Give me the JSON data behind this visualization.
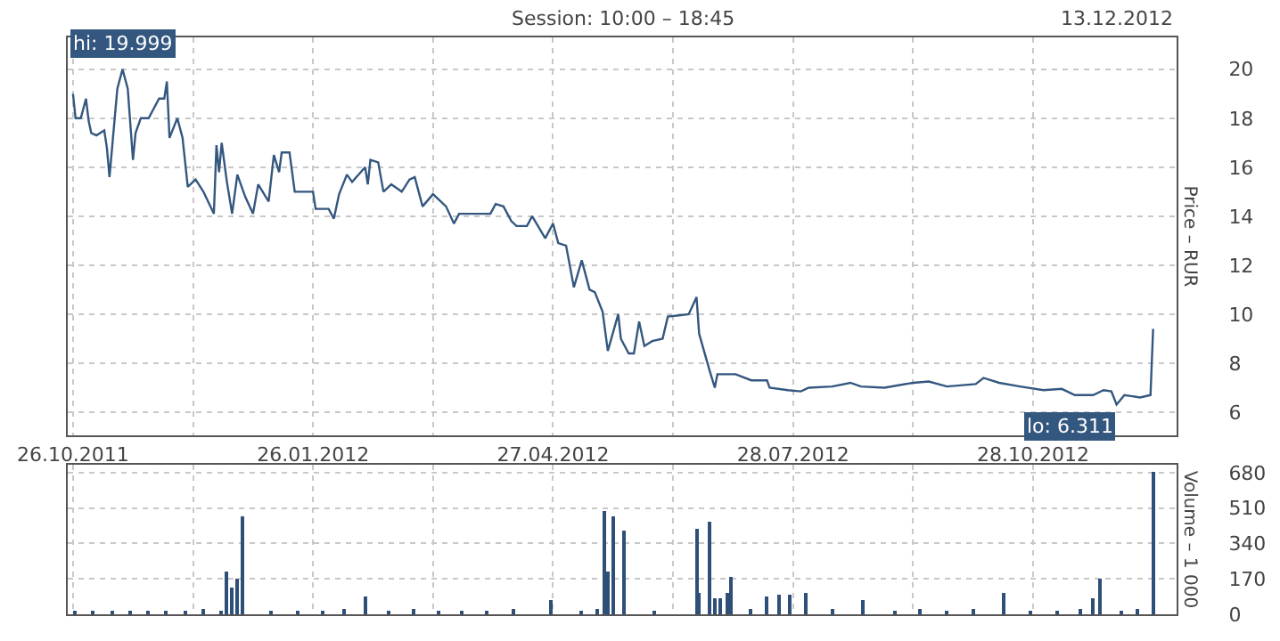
{
  "chart_data": [
    {
      "type": "line",
      "title": "Session: 10:00 – 18:45",
      "ylabel": "Price – RUR",
      "annotations": [
        "13.12.2012",
        {
          "text": "hi: 19.999",
          "x": "2011-11-14",
          "y": 19.999
        },
        {
          "text": "lo: 6.311",
          "x": "2012-11-29",
          "y": 6.311
        }
      ],
      "x": [
        "2011-10-26",
        "2011-10-27",
        "2011-10-29",
        "2011-10-31",
        "2011-11-01",
        "2011-11-02",
        "2011-11-04",
        "2011-11-07",
        "2011-11-08",
        "2011-11-09",
        "2011-11-11",
        "2011-11-12",
        "2011-11-14",
        "2011-11-16",
        "2011-11-18",
        "2011-11-19",
        "2011-11-21",
        "2011-11-24",
        "2011-11-28",
        "2011-11-30",
        "2011-12-01",
        "2011-12-02",
        "2011-12-05",
        "2011-12-07",
        "2011-12-09",
        "2011-12-12",
        "2011-12-15",
        "2011-12-19",
        "2011-12-20",
        "2011-12-21",
        "2011-12-22",
        "2011-12-24",
        "2011-12-26",
        "2011-12-28",
        "2011-12-31",
        "2012-01-03",
        "2012-01-05",
        "2012-01-09",
        "2012-01-11",
        "2012-01-13",
        "2012-01-14",
        "2012-01-17",
        "2012-01-19",
        "2012-01-26",
        "2012-01-27",
        "2012-02-01",
        "2012-02-03",
        "2012-02-05",
        "2012-02-08",
        "2012-02-10",
        "2012-02-15",
        "2012-02-16",
        "2012-02-17",
        "2012-02-20",
        "2012-02-22",
        "2012-02-25",
        "2012-02-29",
        "2012-03-03",
        "2012-03-05",
        "2012-03-08",
        "2012-03-12",
        "2012-03-17",
        "2012-03-20",
        "2012-03-22",
        "2012-03-27",
        "2012-04-03",
        "2012-04-05",
        "2012-04-08",
        "2012-04-11",
        "2012-04-13",
        "2012-04-17",
        "2012-04-19",
        "2012-04-24",
        "2012-04-27",
        "2012-04-29",
        "2012-05-02",
        "2012-05-05",
        "2012-05-08",
        "2012-05-11",
        "2012-05-13",
        "2012-05-16",
        "2012-05-18",
        "2012-05-22",
        "2012-05-23",
        "2012-05-26",
        "2012-05-28",
        "2012-05-30",
        "2012-06-01",
        "2012-06-04",
        "2012-06-08",
        "2012-06-10",
        "2012-06-18",
        "2012-06-21",
        "2012-06-22",
        "2012-06-26",
        "2012-06-28",
        "2012-06-29",
        "2012-07-06",
        "2012-07-12",
        "2012-07-18",
        "2012-07-19",
        "2012-07-26",
        "2012-07-31",
        "2012-08-03",
        "2012-08-12",
        "2012-08-19",
        "2012-08-23",
        "2012-09-01",
        "2012-09-12",
        "2012-09-18",
        "2012-09-25",
        "2012-10-06",
        "2012-10-09",
        "2012-10-15",
        "2012-10-23",
        "2012-11-01",
        "2012-11-08",
        "2012-11-13",
        "2012-11-20",
        "2012-11-24",
        "2012-11-27",
        "2012-11-29",
        "2012-12-02",
        "2012-12-08",
        "2012-12-12",
        "2012-12-13"
      ],
      "series": [
        {
          "color": "#34577f",
          "values": [
            19.0,
            18.0,
            18.0,
            18.8,
            17.9,
            17.4,
            17.3,
            17.5,
            16.8,
            15.6,
            18.0,
            19.2,
            19.999,
            19.2,
            16.3,
            17.4,
            18.0,
            18.0,
            18.8,
            18.8,
            19.5,
            17.2,
            18.0,
            17.2,
            15.2,
            15.5,
            15.0,
            14.1,
            16.9,
            15.8,
            17.0,
            15.4,
            14.1,
            15.7,
            14.8,
            14.1,
            15.3,
            14.6,
            16.5,
            15.8,
            16.6,
            16.6,
            15.0,
            15.0,
            14.3,
            14.3,
            13.9,
            14.9,
            15.7,
            15.4,
            16.0,
            15.3,
            16.3,
            16.2,
            15.0,
            15.3,
            15.0,
            15.5,
            15.6,
            14.4,
            14.9,
            14.4,
            13.7,
            14.1,
            14.1,
            14.1,
            14.5,
            14.4,
            13.8,
            13.6,
            13.6,
            14.0,
            13.1,
            13.7,
            12.9,
            12.8,
            11.1,
            12.2,
            11.0,
            10.9,
            10.1,
            8.5,
            10.0,
            9.0,
            8.4,
            8.4,
            9.7,
            8.7,
            8.9,
            9.0,
            9.9,
            10.0,
            10.7,
            9.2,
            7.7,
            7.0,
            7.55,
            7.55,
            7.3,
            7.3,
            7.0,
            6.9,
            6.85,
            7.0,
            7.05,
            7.2,
            7.05,
            7.0,
            7.2,
            7.25,
            7.05,
            7.15,
            7.4,
            7.2,
            7.05,
            6.9,
            6.95,
            6.7,
            6.7,
            6.9,
            6.85,
            6.311,
            6.7,
            6.6,
            6.7,
            9.4
          ]
        }
      ],
      "xlim": [
        "2011-10-24",
        "2012-12-22"
      ],
      "xticks": [
        {
          "value": "2011-10-26",
          "label": "26.10.2011"
        },
        {
          "value": "2011-12-11",
          "label": null
        },
        {
          "value": "2012-01-26",
          "label": "26.01.2012"
        },
        {
          "value": "2012-03-12",
          "label": null
        },
        {
          "value": "2012-04-27",
          "label": "27.04.2012"
        },
        {
          "value": "2012-06-12",
          "label": null
        },
        {
          "value": "2012-07-28",
          "label": "28.07.2012"
        },
        {
          "value": "2012-09-12",
          "label": null
        },
        {
          "value": "2012-10-28",
          "label": "28.10.2012"
        }
      ],
      "ylim": [
        5.05,
        21.3
      ],
      "yticks": [
        6,
        8,
        10,
        12,
        14,
        16,
        18,
        20
      ],
      "grid": true,
      "marker": "none",
      "line_style": "solid"
    },
    {
      "type": "bar",
      "ylabel": "Volume – 1 000",
      "tick_labels": "y",
      "x": [
        "2011-10-27",
        "2011-11-03",
        "2011-11-10",
        "2011-11-17",
        "2011-11-24",
        "2011-12-01",
        "2011-12-08",
        "2011-12-15",
        "2011-12-22",
        "2011-12-24",
        "2011-12-26",
        "2011-12-28",
        "2011-12-30",
        "2012-01-10",
        "2012-01-20",
        "2012-01-30",
        "2012-02-07",
        "2012-02-15",
        "2012-02-24",
        "2012-03-05",
        "2012-03-14",
        "2012-03-23",
        "2012-04-02",
        "2012-04-12",
        "2012-04-26",
        "2012-05-08",
        "2012-05-14",
        "2012-05-17",
        "2012-05-18",
        "2012-05-20",
        "2012-05-24",
        "2012-06-05",
        "2012-06-21",
        "2012-06-22",
        "2012-06-26",
        "2012-06-28",
        "2012-06-30",
        "2012-07-03",
        "2012-07-04",
        "2012-07-12",
        "2012-07-18",
        "2012-07-23",
        "2012-07-27",
        "2012-08-02",
        "2012-08-12",
        "2012-08-24",
        "2012-09-05",
        "2012-09-15",
        "2012-09-25",
        "2012-10-05",
        "2012-10-17",
        "2012-10-27",
        "2012-11-06",
        "2012-11-15",
        "2012-11-20",
        "2012-11-23",
        "2012-12-01",
        "2012-12-07",
        "2012-12-13"
      ],
      "series": [
        {
          "color": "#2e4f77",
          "values": [
            20,
            15,
            20,
            15,
            20,
            15,
            20,
            25,
            20,
            210,
            128,
            170,
            475,
            20,
            15,
            20,
            25,
            87,
            20,
            30,
            20,
            15,
            20,
            25,
            68,
            20,
            30,
            495,
            210,
            475,
            405,
            15,
            413,
            107,
            443,
            76,
            76,
            107,
            178,
            30,
            87,
            96,
            96,
            107,
            25,
            68,
            20,
            25,
            20,
            25,
            107,
            20,
            20,
            25,
            76,
            170,
            20,
            25,
            690
          ]
        }
      ],
      "xlim": [
        "2011-10-24",
        "2012-12-22"
      ],
      "xticks": [
        {
          "value": "2011-10-26",
          "label": null
        },
        {
          "value": "2011-12-11",
          "label": null
        },
        {
          "value": "2012-01-26",
          "label": null
        },
        {
          "value": "2012-03-12",
          "label": null
        },
        {
          "value": "2012-04-27",
          "label": null
        },
        {
          "value": "2012-06-12",
          "label": null
        },
        {
          "value": "2012-07-28",
          "label": null
        },
        {
          "value": "2012-09-12",
          "label": null
        },
        {
          "value": "2012-10-28",
          "label": null
        }
      ],
      "ylim": [
        0,
        720
      ],
      "yticks": [
        0,
        170,
        340,
        510,
        680
      ],
      "grid": true
    }
  ]
}
